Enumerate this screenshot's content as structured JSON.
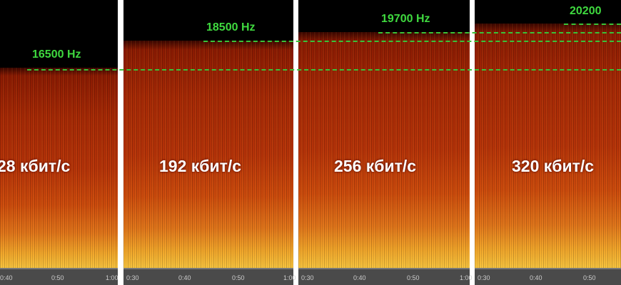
{
  "panels": [
    {
      "label": "28 кбит/с",
      "cutoff": "16500 Hz",
      "ticks": [
        "0:40",
        "0:50",
        "1:00"
      ]
    },
    {
      "label": "192 кбит/с",
      "cutoff": "18500 Hz",
      "ticks": [
        "0:30",
        "0:40",
        "0:50",
        "1:00"
      ]
    },
    {
      "label": "256 кбит/с",
      "cutoff": "19700 Hz",
      "ticks": [
        "0:30",
        "0:40",
        "0:50",
        "1:00"
      ]
    },
    {
      "label": "320 кбит/с",
      "cutoff": "20200",
      "ticks": [
        "0:30",
        "0:40",
        "0:50"
      ]
    }
  ]
}
